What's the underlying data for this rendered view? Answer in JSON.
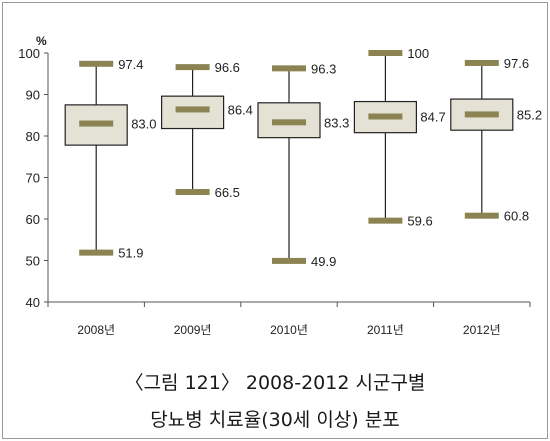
{
  "chart_data": {
    "type": "box",
    "ylabel": "%",
    "ylim": [
      40,
      100
    ],
    "yticks": [
      40,
      50,
      60,
      70,
      80,
      90,
      100
    ],
    "grid": false,
    "categories": [
      "2008년",
      "2009년",
      "2010년",
      "2011년",
      "2012년"
    ],
    "series": [
      {
        "category": "2008년",
        "max": 97.4,
        "median": 83.0,
        "min": 51.9,
        "q1": 77.8,
        "q3": 87.5,
        "max_label": "97.4",
        "median_label": "83.0",
        "min_label": "51.9"
      },
      {
        "category": "2009년",
        "max": 96.6,
        "median": 86.4,
        "min": 66.5,
        "q1": 81.8,
        "q3": 89.6,
        "max_label": "96.6",
        "median_label": "86.4",
        "min_label": "66.5"
      },
      {
        "category": "2010년",
        "max": 96.3,
        "median": 83.3,
        "min": 49.9,
        "q1": 79.6,
        "q3": 88.0,
        "max_label": "96.3",
        "median_label": "83.3",
        "min_label": "49.9"
      },
      {
        "category": "2011년",
        "max": 100,
        "median": 84.7,
        "min": 59.6,
        "q1": 80.8,
        "q3": 88.3,
        "max_label": "100",
        "median_label": "84.7",
        "min_label": "59.6"
      },
      {
        "category": "2012년",
        "max": 97.6,
        "median": 85.2,
        "min": 60.8,
        "q1": 81.4,
        "q3": 88.9,
        "max_label": "97.6",
        "median_label": "85.2",
        "min_label": "60.8"
      }
    ],
    "colors": {
      "marker": "#8c8353",
      "box_fill": "#e4e2d5",
      "box_stroke": "#222222",
      "axis": "#555555"
    }
  },
  "caption": {
    "line1": "〈그림 121〉 2008-2012 시군구별",
    "line2": "당뇨병 치료율(30세 이상) 분포"
  }
}
